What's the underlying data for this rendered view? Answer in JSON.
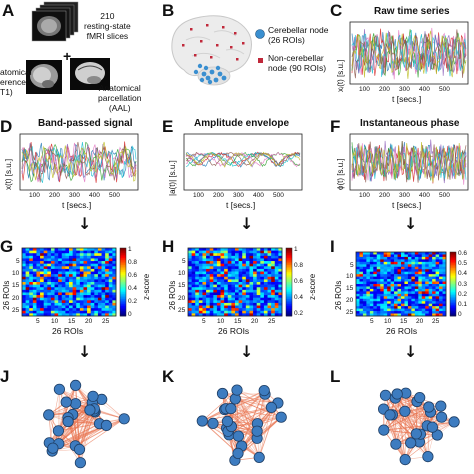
{
  "panels": {
    "A": {
      "letter": "A",
      "slices_label_line1": "210",
      "slices_label_line2": "resting-state",
      "slices_label_line3": "fMRI slices",
      "plus": "+",
      "anat_label_line1": "atomical",
      "anat_label_line2": "erence",
      "anat_label_line3": "T1)",
      "parc_label_line1": "Anatomical",
      "parc_label_line2": "parcellation",
      "parc_label_line3": "(AAL)"
    },
    "B": {
      "letter": "B",
      "legend_cereb_line1": "Cerebellar node",
      "legend_cereb_line2": "(26 ROIs)",
      "legend_noncereb_line1": "Non-cerebellar",
      "legend_noncereb_line2": "node (90 ROIs)",
      "cereb_color": "#3a8fd0",
      "noncereb_color": "#c0283a"
    },
    "C": {
      "letter": "C",
      "title": "Raw time series",
      "ylabel": "xᵢ(t) [s.u.]",
      "xlabel": "t [secs.]",
      "ticks": [
        "100",
        "200",
        "300",
        "400",
        "500"
      ]
    },
    "D": {
      "letter": "D",
      "title": "Band-passed signal",
      "ylabel": "x(t) [s.u.]",
      "xlabel": "t [secs.]",
      "ticks": [
        "100",
        "200",
        "300",
        "400",
        "500"
      ]
    },
    "E": {
      "letter": "E",
      "title": "Amplitude envelope",
      "ylabel": "|a(t)| [s.u.]",
      "xlabel": "t [secs.]",
      "ticks": [
        "100",
        "200",
        "300",
        "400",
        "500"
      ]
    },
    "F": {
      "letter": "F",
      "title": "Instantaneous phase",
      "ylabel": "ϕ(t) [s.u.]",
      "xlabel": "t [secs.]",
      "ticks": [
        "100",
        "200",
        "300",
        "400",
        "500"
      ]
    },
    "G": {
      "letter": "G",
      "xlabel": "26 ROIs",
      "ylabel": "26 ROIs",
      "xticks": [
        "5",
        "10",
        "15",
        "20",
        "25"
      ],
      "yticks": [
        "5",
        "10",
        "15",
        "20",
        "25"
      ],
      "cbar_ticks": [
        "1",
        "0.8",
        "0.6",
        "0.4",
        "0.2",
        "0"
      ],
      "cbar_label": "z-score"
    },
    "H": {
      "letter": "H",
      "xlabel": "26 ROIs",
      "ylabel": "26 ROIs",
      "xticks": [
        "5",
        "10",
        "15",
        "20",
        "25"
      ],
      "yticks": [
        "5",
        "10",
        "15",
        "20",
        "25"
      ],
      "cbar_ticks": [
        "1",
        "0.8",
        "0.6",
        "0.4",
        "0.2"
      ],
      "cbar_label": "z-score"
    },
    "I": {
      "letter": "I",
      "xlabel": "26 ROIs",
      "ylabel": "26 ROIs",
      "xticks": [
        "5",
        "10",
        "15",
        "20",
        "25"
      ],
      "yticks": [
        "5",
        "10",
        "15",
        "20",
        "25"
      ],
      "cbar_ticks": [
        "0.6",
        "0.5",
        "0.4",
        "0.3",
        "0.2",
        "0.1",
        "0"
      ],
      "cbar_label": "z-score"
    },
    "J": {
      "letter": "J"
    },
    "K": {
      "letter": "K"
    },
    "L": {
      "letter": "L"
    }
  },
  "arrows": [
    "↓",
    "↓",
    "↓",
    "↓",
    "↓",
    "↓"
  ],
  "colors": {
    "edge": "#e8734f",
    "node": "#3d7cc0",
    "node_stroke": "#1f3f66"
  }
}
